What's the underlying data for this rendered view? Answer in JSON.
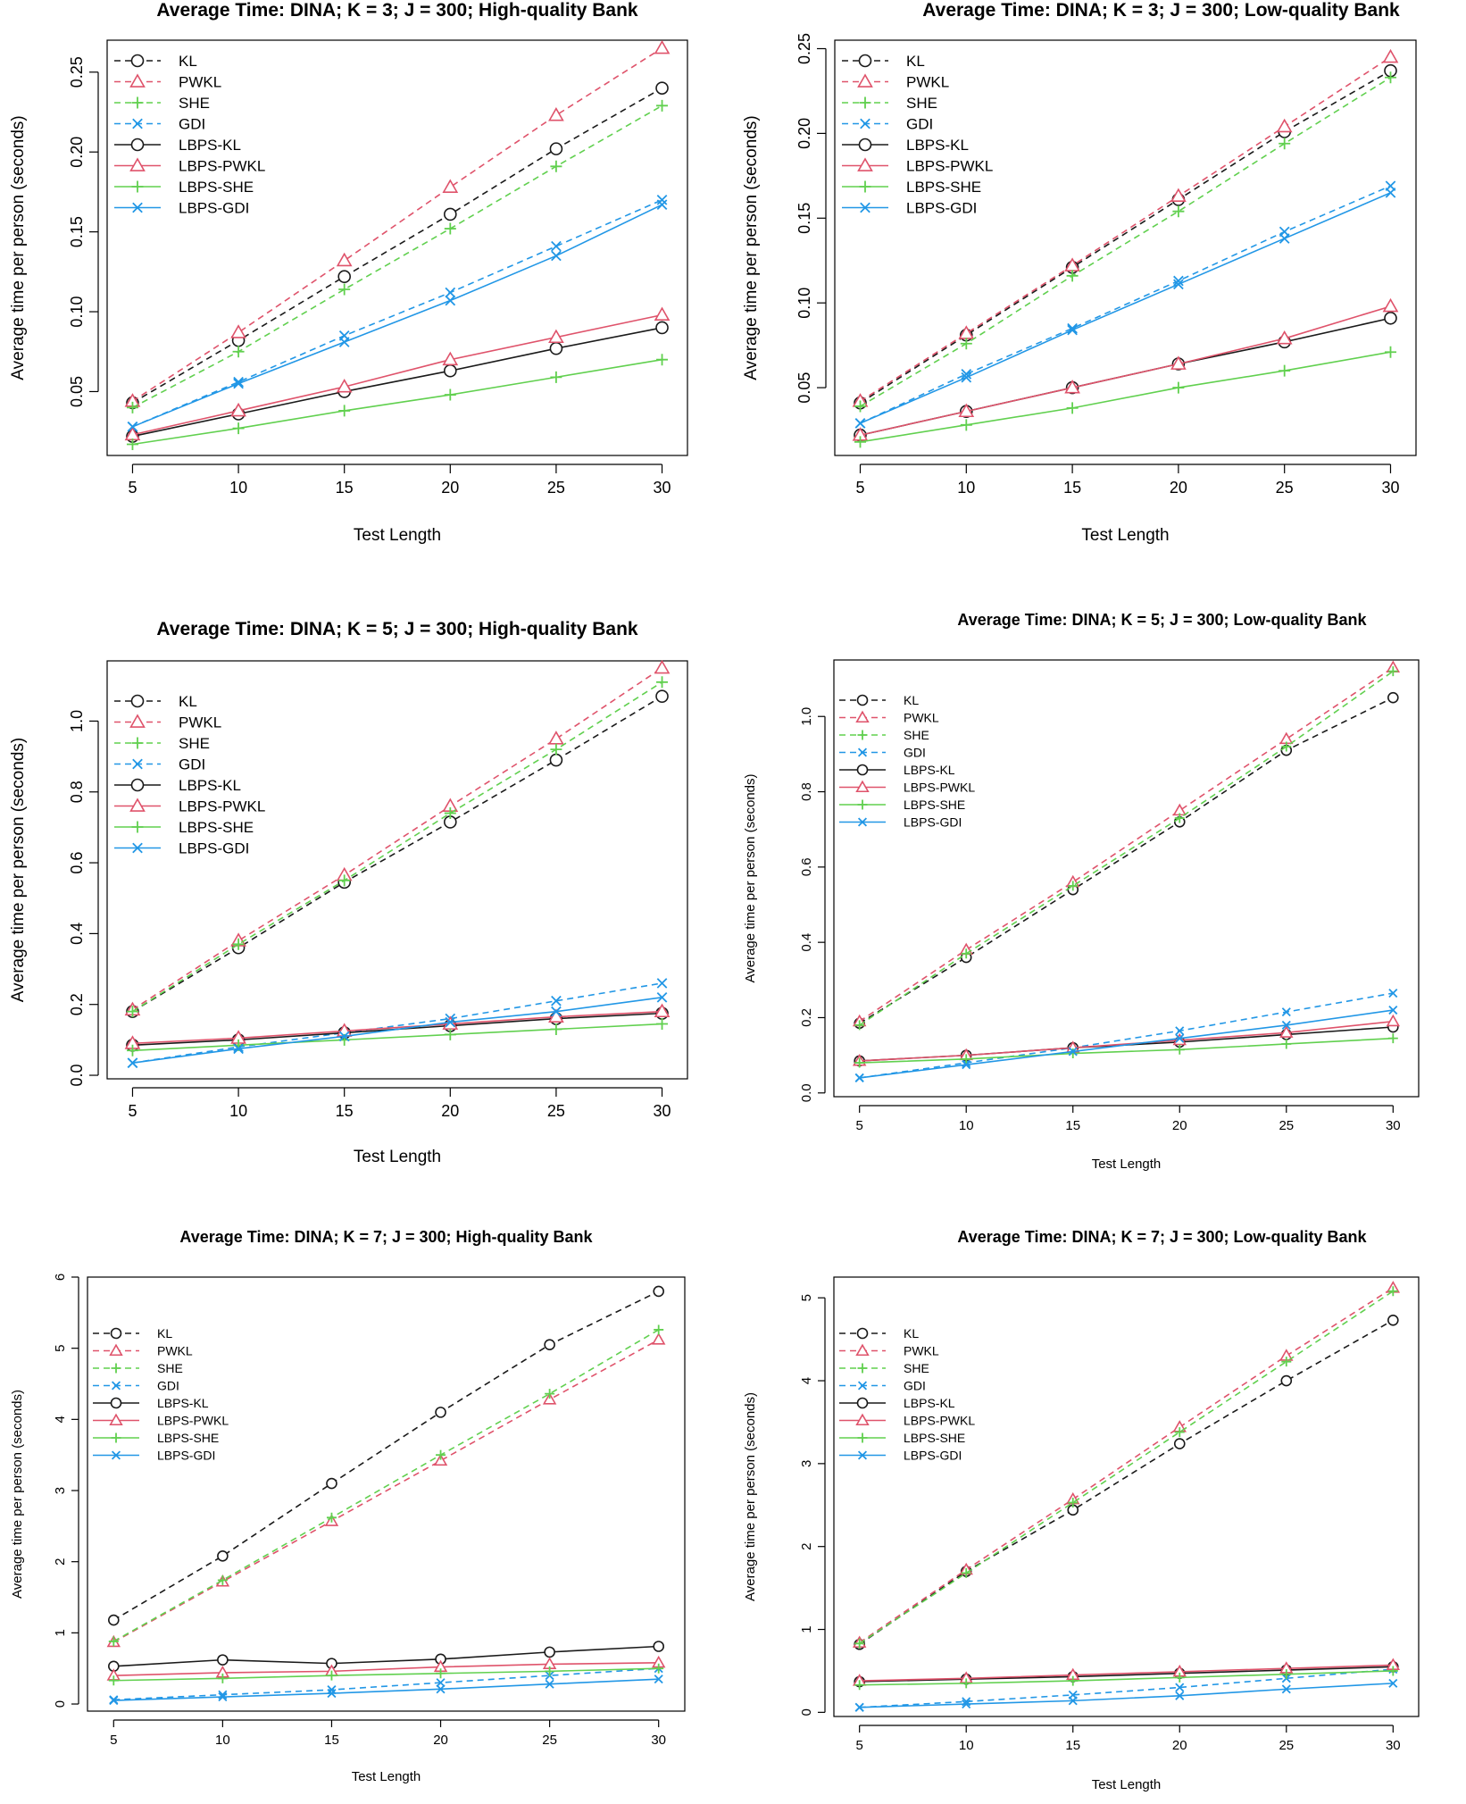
{
  "styles": {
    "KL": {
      "color": "#1a1a1a",
      "marker": "circle",
      "dash": true
    },
    "PWKL": {
      "color": "#df536b",
      "marker": "triangle",
      "dash": true
    },
    "SHE": {
      "color": "#61d04f",
      "marker": "plus",
      "dash": true
    },
    "GDI": {
      "color": "#2297e6",
      "marker": "cross",
      "dash": true
    },
    "LBPS-KL": {
      "color": "#1a1a1a",
      "marker": "circle",
      "dash": false
    },
    "LBPS-PWKL": {
      "color": "#df536b",
      "marker": "triangle",
      "dash": false
    },
    "LBPS-SHE": {
      "color": "#61d04f",
      "marker": "plus",
      "dash": false
    },
    "LBPS-GDI": {
      "color": "#2297e6",
      "marker": "cross",
      "dash": false
    }
  },
  "chart_data": [
    {
      "type": "line",
      "title": "Average Time: DINA; K = 3; J = 300; High-quality Bank",
      "xlabel": "Test Length",
      "ylabel": "Average time per person (seconds)",
      "x": [
        5,
        10,
        15,
        20,
        25,
        30
      ],
      "ylim": [
        0.01,
        0.27
      ],
      "yticks": [
        0.05,
        0.1,
        0.15,
        0.2,
        0.25
      ],
      "ytick_labels": [
        "0.05",
        "0.10",
        "0.15",
        "0.20",
        "0.25"
      ],
      "legend_position": "top-left",
      "series": [
        {
          "name": "KL",
          "values": [
            0.043,
            0.082,
            0.122,
            0.161,
            0.202,
            0.24
          ]
        },
        {
          "name": "PWKL",
          "values": [
            0.044,
            0.087,
            0.132,
            0.178,
            0.223,
            0.265
          ]
        },
        {
          "name": "SHE",
          "values": [
            0.04,
            0.075,
            0.114,
            0.152,
            0.191,
            0.229
          ]
        },
        {
          "name": "GDI",
          "values": [
            0.028,
            0.056,
            0.085,
            0.112,
            0.141,
            0.17
          ]
        },
        {
          "name": "LBPS-KL",
          "values": [
            0.022,
            0.036,
            0.05,
            0.063,
            0.077,
            0.09
          ]
        },
        {
          "name": "LBPS-PWKL",
          "values": [
            0.023,
            0.038,
            0.053,
            0.07,
            0.084,
            0.098
          ]
        },
        {
          "name": "LBPS-SHE",
          "values": [
            0.017,
            0.027,
            0.038,
            0.048,
            0.059,
            0.07
          ]
        },
        {
          "name": "LBPS-GDI",
          "values": [
            0.028,
            0.055,
            0.081,
            0.107,
            0.135,
            0.167
          ]
        }
      ]
    },
    {
      "type": "line",
      "title": "Average Time: DINA; K = 3; J = 300; Low-quality Bank",
      "xlabel": "Test Length",
      "ylabel": "Average time per person (seconds)",
      "x": [
        5,
        10,
        15,
        20,
        25,
        30
      ],
      "ylim": [
        0.01,
        0.255
      ],
      "yticks": [
        0.05,
        0.1,
        0.15,
        0.2,
        0.25
      ],
      "ytick_labels": [
        "0.05",
        "0.10",
        "0.15",
        "0.20",
        "0.25"
      ],
      "legend_position": "top-left",
      "series": [
        {
          "name": "KL",
          "values": [
            0.041,
            0.081,
            0.121,
            0.161,
            0.201,
            0.237
          ]
        },
        {
          "name": "PWKL",
          "values": [
            0.042,
            0.082,
            0.122,
            0.163,
            0.204,
            0.245
          ]
        },
        {
          "name": "SHE",
          "values": [
            0.039,
            0.076,
            0.116,
            0.154,
            0.194,
            0.233
          ]
        },
        {
          "name": "GDI",
          "values": [
            0.029,
            0.058,
            0.085,
            0.113,
            0.142,
            0.169
          ]
        },
        {
          "name": "LBPS-KL",
          "values": [
            0.022,
            0.036,
            0.05,
            0.064,
            0.077,
            0.091
          ]
        },
        {
          "name": "LBPS-PWKL",
          "values": [
            0.022,
            0.036,
            0.05,
            0.064,
            0.079,
            0.098
          ]
        },
        {
          "name": "LBPS-SHE",
          "values": [
            0.018,
            0.028,
            0.038,
            0.05,
            0.06,
            0.071
          ]
        },
        {
          "name": "LBPS-GDI",
          "values": [
            0.029,
            0.056,
            0.084,
            0.111,
            0.138,
            0.165
          ]
        }
      ]
    },
    {
      "type": "line",
      "title": "Average Time: DINA; K = 5; J = 300; High-quality Bank",
      "xlabel": "Test Length",
      "ylabel": "Average time per person (seconds)",
      "x": [
        5,
        10,
        15,
        20,
        25,
        30
      ],
      "ylim": [
        -0.01,
        1.17
      ],
      "yticks": [
        0.0,
        0.2,
        0.4,
        0.6,
        0.8,
        1.0
      ],
      "ytick_labels": [
        "0.0",
        "0.2",
        "0.4",
        "0.6",
        "0.8",
        "1.0"
      ],
      "legend_position": "top-left",
      "series": [
        {
          "name": "KL",
          "values": [
            0.18,
            0.36,
            0.545,
            0.715,
            0.89,
            1.07
          ]
        },
        {
          "name": "PWKL",
          "values": [
            0.185,
            0.38,
            0.565,
            0.76,
            0.95,
            1.15
          ]
        },
        {
          "name": "SHE",
          "values": [
            0.18,
            0.37,
            0.55,
            0.74,
            0.92,
            1.11
          ]
        },
        {
          "name": "GDI",
          "values": [
            0.035,
            0.08,
            0.12,
            0.16,
            0.21,
            0.26
          ]
        },
        {
          "name": "LBPS-KL",
          "values": [
            0.085,
            0.1,
            0.12,
            0.14,
            0.16,
            0.175
          ]
        },
        {
          "name": "LBPS-PWKL",
          "values": [
            0.09,
            0.105,
            0.125,
            0.145,
            0.165,
            0.18
          ]
        },
        {
          "name": "LBPS-SHE",
          "values": [
            0.07,
            0.085,
            0.1,
            0.115,
            0.13,
            0.145
          ]
        },
        {
          "name": "LBPS-GDI",
          "values": [
            0.035,
            0.075,
            0.11,
            0.15,
            0.18,
            0.22
          ]
        }
      ]
    },
    {
      "type": "line",
      "title": "Average Time: DINA; K = 5; J = 300; Low-quality Bank",
      "xlabel": "Test Length",
      "ylabel": "Average time per person (seconds)",
      "x": [
        5,
        10,
        15,
        20,
        25,
        30
      ],
      "ylim": [
        -0.01,
        1.15
      ],
      "yticks": [
        0.0,
        0.2,
        0.4,
        0.6,
        0.8,
        1.0
      ],
      "ytick_labels": [
        "0.0",
        "0.2",
        "0.4",
        "0.6",
        "0.8",
        "1.0"
      ],
      "legend_position": "top-left",
      "series": [
        {
          "name": "KL",
          "values": [
            0.185,
            0.36,
            0.54,
            0.72,
            0.91,
            1.05
          ]
        },
        {
          "name": "PWKL",
          "values": [
            0.19,
            0.38,
            0.56,
            0.75,
            0.94,
            1.13
          ]
        },
        {
          "name": "SHE",
          "values": [
            0.18,
            0.37,
            0.55,
            0.73,
            0.92,
            1.12
          ]
        },
        {
          "name": "GDI",
          "values": [
            0.04,
            0.08,
            0.12,
            0.165,
            0.215,
            0.265
          ]
        },
        {
          "name": "LBPS-KL",
          "values": [
            0.085,
            0.1,
            0.12,
            0.135,
            0.155,
            0.175
          ]
        },
        {
          "name": "LBPS-PWKL",
          "values": [
            0.085,
            0.1,
            0.12,
            0.14,
            0.16,
            0.19
          ]
        },
        {
          "name": "LBPS-SHE",
          "values": [
            0.08,
            0.09,
            0.105,
            0.115,
            0.13,
            0.145
          ]
        },
        {
          "name": "LBPS-GDI",
          "values": [
            0.04,
            0.075,
            0.11,
            0.145,
            0.18,
            0.22
          ]
        }
      ]
    },
    {
      "type": "line",
      "title": "Average Time: DINA; K = 7; J = 300; High-quality Bank",
      "xlabel": "Test Length",
      "ylabel": "Average time per person (seconds)",
      "x": [
        5,
        10,
        15,
        20,
        25,
        30
      ],
      "ylim": [
        -0.1,
        6.0
      ],
      "yticks": [
        0,
        1,
        2,
        3,
        4,
        5,
        6
      ],
      "ytick_labels": [
        "0",
        "1",
        "2",
        "3",
        "4",
        "5",
        "6"
      ],
      "legend_position": "top-left",
      "series": [
        {
          "name": "KL",
          "values": [
            1.18,
            2.08,
            3.1,
            4.1,
            5.05,
            5.8
          ]
        },
        {
          "name": "PWKL",
          "values": [
            0.87,
            1.72,
            2.57,
            3.42,
            4.28,
            5.12
          ]
        },
        {
          "name": "SHE",
          "values": [
            0.88,
            1.74,
            2.62,
            3.5,
            4.36,
            5.26
          ]
        },
        {
          "name": "GDI",
          "values": [
            0.06,
            0.13,
            0.2,
            0.3,
            0.4,
            0.5
          ]
        },
        {
          "name": "LBPS-KL",
          "values": [
            0.53,
            0.62,
            0.57,
            0.63,
            0.73,
            0.81
          ]
        },
        {
          "name": "LBPS-PWKL",
          "values": [
            0.4,
            0.44,
            0.46,
            0.52,
            0.56,
            0.58
          ]
        },
        {
          "name": "LBPS-SHE",
          "values": [
            0.33,
            0.36,
            0.4,
            0.43,
            0.46,
            0.5
          ]
        },
        {
          "name": "LBPS-GDI",
          "values": [
            0.05,
            0.1,
            0.15,
            0.21,
            0.28,
            0.35
          ]
        }
      ]
    },
    {
      "type": "line",
      "title": "Average Time: DINA; K = 7; J = 300; Low-quality Bank",
      "xlabel": "Test Length",
      "ylabel": "Average time per person (seconds)",
      "x": [
        5,
        10,
        15,
        20,
        25,
        30
      ],
      "ylim": [
        -0.05,
        5.25
      ],
      "yticks": [
        0,
        1,
        2,
        3,
        4,
        5
      ],
      "ytick_labels": [
        "0",
        "1",
        "2",
        "3",
        "4",
        "5"
      ],
      "legend_position": "top-left",
      "series": [
        {
          "name": "KL",
          "values": [
            0.82,
            1.7,
            2.44,
            3.24,
            4.0,
            4.73
          ]
        },
        {
          "name": "PWKL",
          "values": [
            0.84,
            1.72,
            2.57,
            3.44,
            4.3,
            5.12
          ]
        },
        {
          "name": "SHE",
          "values": [
            0.83,
            1.68,
            2.53,
            3.38,
            4.23,
            5.08
          ]
        },
        {
          "name": "GDI",
          "values": [
            0.06,
            0.13,
            0.21,
            0.3,
            0.41,
            0.52
          ]
        },
        {
          "name": "LBPS-KL",
          "values": [
            0.37,
            0.4,
            0.43,
            0.47,
            0.51,
            0.55
          ]
        },
        {
          "name": "LBPS-PWKL",
          "values": [
            0.38,
            0.41,
            0.45,
            0.49,
            0.53,
            0.57
          ]
        },
        {
          "name": "LBPS-SHE",
          "values": [
            0.33,
            0.35,
            0.38,
            0.42,
            0.46,
            0.5
          ]
        },
        {
          "name": "LBPS-GDI",
          "values": [
            0.06,
            0.1,
            0.14,
            0.2,
            0.28,
            0.35
          ]
        }
      ]
    }
  ]
}
